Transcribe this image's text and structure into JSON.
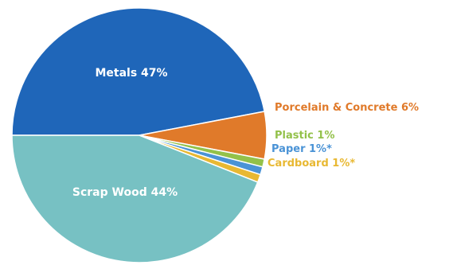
{
  "chart_data": {
    "type": "pie",
    "slices": [
      {
        "label": "Metals 47%",
        "value": 47,
        "color": "#1f66b9"
      },
      {
        "label": "Porcelain & Concrete 6%",
        "value": 6,
        "color": "#e07a2a"
      },
      {
        "label": "Plastic 1%",
        "value": 1,
        "color": "#93c14a"
      },
      {
        "label": "Paper 1%*",
        "value": 1,
        "color": "#4a93d6"
      },
      {
        "label": "Cardboard 1%*",
        "value": 1,
        "color": "#e8b832"
      },
      {
        "label": "Scrap Wood 44%",
        "value": 44,
        "color": "#77c1c3"
      }
    ]
  }
}
